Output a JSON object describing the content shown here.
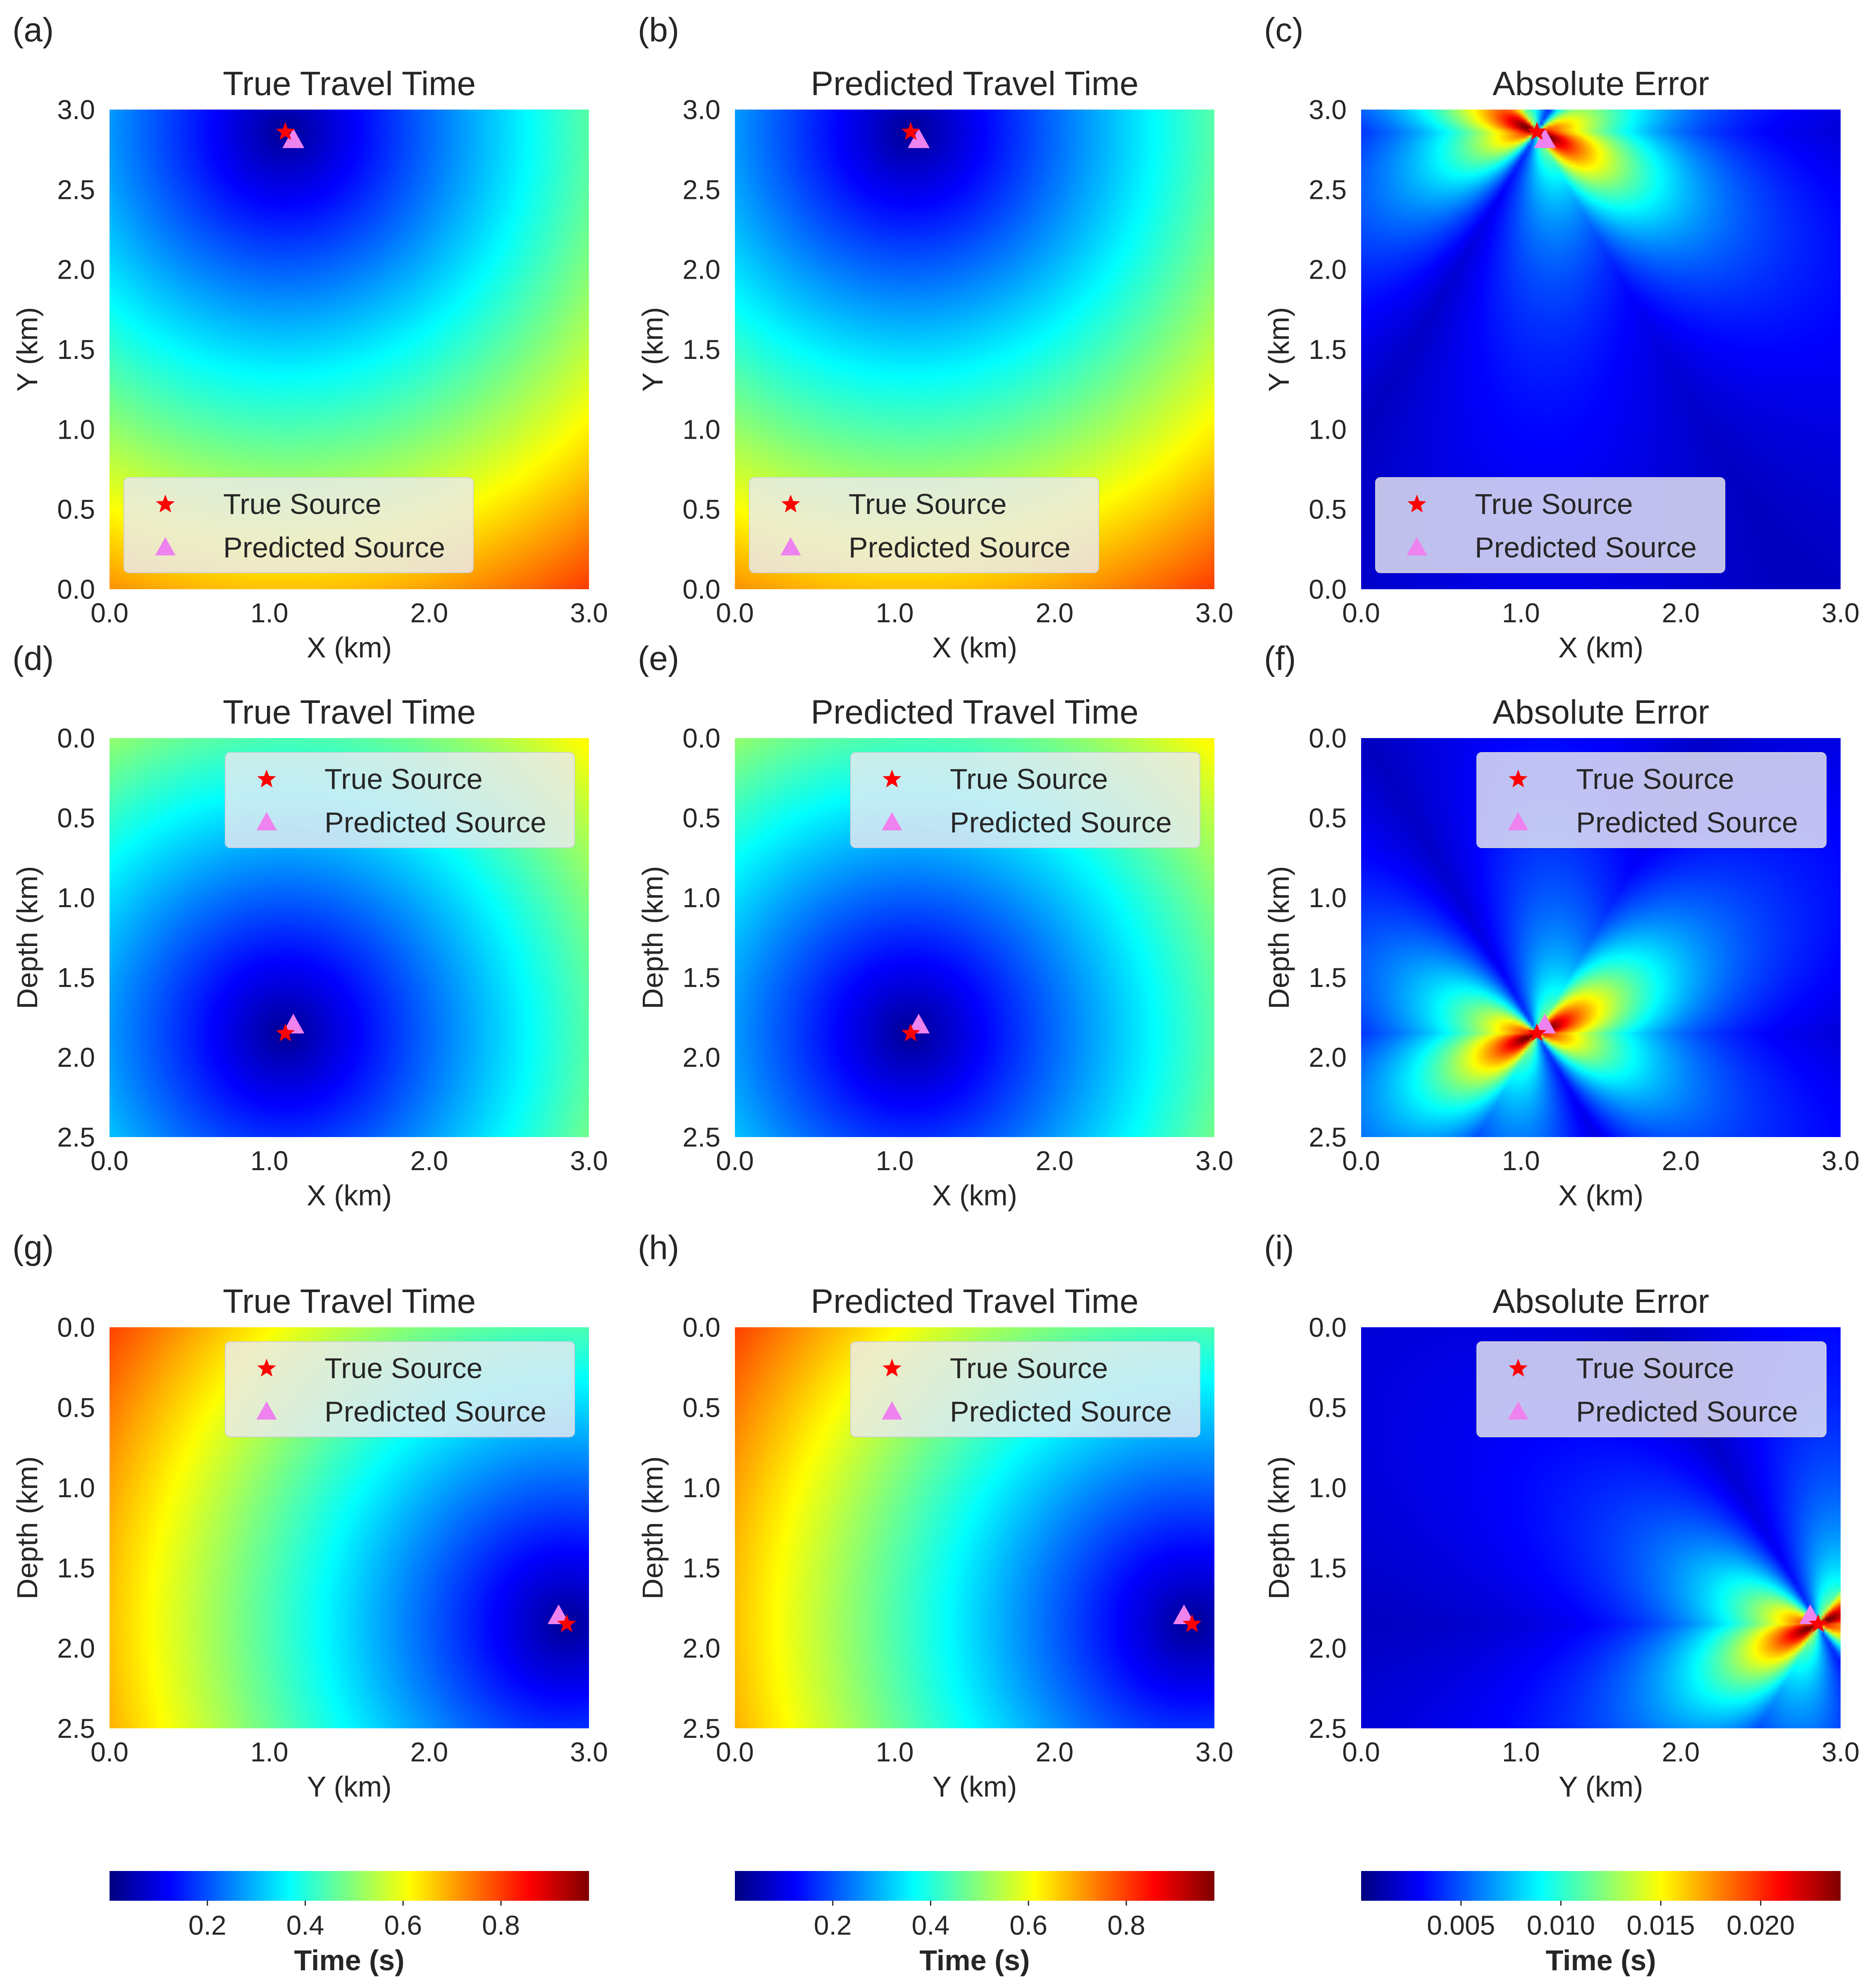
{
  "colormap": [
    "#00007f",
    "#0000ff",
    "#007fff",
    "#00ffff",
    "#7fff7f",
    "#ffff00",
    "#ff7f00",
    "#ff0000",
    "#7f0000"
  ],
  "markers": {
    "true_source_color": "#ff0000",
    "predicted_source_color": "#ee82ee",
    "true_source_icon": "star-icon",
    "predicted_source_icon": "triangle-icon"
  },
  "chart_data": [
    {
      "type": "heatmap",
      "panel": "(a)",
      "title": "True Travel Time",
      "xlabel": "X (km)",
      "ylabel": "Y (km)",
      "xlim": [
        0,
        3
      ],
      "ylim": [
        0,
        3
      ],
      "y_inverted": false,
      "xticks": [
        "0.0",
        "1.0",
        "2.0",
        "3.0"
      ],
      "yticks": [
        "0.0",
        "0.5",
        "1.0",
        "1.5",
        "2.0",
        "2.5",
        "3.0"
      ],
      "field": "travel_time",
      "true_source": [
        1.1,
        2.86
      ],
      "predicted_source": [
        1.15,
        2.81
      ],
      "legend": [
        "True Source",
        "Predicted Source"
      ],
      "legend_position": "lower-left"
    },
    {
      "type": "heatmap",
      "panel": "(b)",
      "title": "Predicted Travel Time",
      "xlabel": "X (km)",
      "ylabel": "Y (km)",
      "xlim": [
        0,
        3
      ],
      "ylim": [
        0,
        3
      ],
      "y_inverted": false,
      "xticks": [
        "0.0",
        "1.0",
        "2.0",
        "3.0"
      ],
      "yticks": [
        "0.0",
        "0.5",
        "1.0",
        "1.5",
        "2.0",
        "2.5",
        "3.0"
      ],
      "field": "travel_time",
      "true_source": [
        1.1,
        2.86
      ],
      "predicted_source": [
        1.15,
        2.81
      ],
      "legend": [
        "True Source",
        "Predicted Source"
      ],
      "legend_position": "lower-left"
    },
    {
      "type": "heatmap",
      "panel": "(c)",
      "title": "Absolute Error",
      "xlabel": "X (km)",
      "ylabel": "Y (km)",
      "xlim": [
        0,
        3
      ],
      "ylim": [
        0,
        3
      ],
      "y_inverted": false,
      "xticks": [
        "0.0",
        "1.0",
        "2.0",
        "3.0"
      ],
      "yticks": [
        "0.0",
        "0.5",
        "1.0",
        "1.5",
        "2.0",
        "2.5",
        "3.0"
      ],
      "field": "abs_error",
      "true_source": [
        1.1,
        2.86
      ],
      "predicted_source": [
        1.15,
        2.81
      ],
      "legend": [
        "True Source",
        "Predicted Source"
      ],
      "legend_position": "lower-left"
    },
    {
      "type": "heatmap",
      "panel": "(d)",
      "title": "True Travel Time",
      "xlabel": "X (km)",
      "ylabel": "Depth (km)",
      "xlim": [
        0,
        3
      ],
      "ylim": [
        0,
        2.5
      ],
      "y_inverted": true,
      "xticks": [
        "0.0",
        "1.0",
        "2.0",
        "3.0"
      ],
      "yticks": [
        "0.0",
        "0.5",
        "1.0",
        "1.5",
        "2.0",
        "2.5"
      ],
      "field": "travel_time",
      "true_source": [
        1.1,
        1.85
      ],
      "predicted_source": [
        1.15,
        1.8
      ],
      "legend": [
        "True Source",
        "Predicted Source"
      ],
      "legend_position": "upper-right"
    },
    {
      "type": "heatmap",
      "panel": "(e)",
      "title": "Predicted Travel Time",
      "xlabel": "X (km)",
      "ylabel": "Depth (km)",
      "xlim": [
        0,
        3
      ],
      "ylim": [
        0,
        2.5
      ],
      "y_inverted": true,
      "xticks": [
        "0.0",
        "1.0",
        "2.0",
        "3.0"
      ],
      "yticks": [
        "0.0",
        "0.5",
        "1.0",
        "1.5",
        "2.0",
        "2.5"
      ],
      "field": "travel_time",
      "true_source": [
        1.1,
        1.85
      ],
      "predicted_source": [
        1.15,
        1.8
      ],
      "legend": [
        "True Source",
        "Predicted Source"
      ],
      "legend_position": "upper-right"
    },
    {
      "type": "heatmap",
      "panel": "(f)",
      "title": "Absolute Error",
      "xlabel": "X (km)",
      "ylabel": "Depth (km)",
      "xlim": [
        0,
        3
      ],
      "ylim": [
        0,
        2.5
      ],
      "y_inverted": true,
      "xticks": [
        "0.0",
        "1.0",
        "2.0",
        "3.0"
      ],
      "yticks": [
        "0.0",
        "0.5",
        "1.0",
        "1.5",
        "2.0",
        "2.5"
      ],
      "field": "abs_error",
      "true_source": [
        1.1,
        1.85
      ],
      "predicted_source": [
        1.15,
        1.8
      ],
      "legend": [
        "True Source",
        "Predicted Source"
      ],
      "legend_position": "upper-right"
    },
    {
      "type": "heatmap",
      "panel": "(g)",
      "title": "True Travel Time",
      "xlabel": "Y (km)",
      "ylabel": "Depth (km)",
      "xlim": [
        0,
        3
      ],
      "ylim": [
        0,
        2.5
      ],
      "y_inverted": true,
      "xticks": [
        "0.0",
        "1.0",
        "2.0",
        "3.0"
      ],
      "yticks": [
        "0.0",
        "0.5",
        "1.0",
        "1.5",
        "2.0",
        "2.5"
      ],
      "field": "travel_time",
      "true_source": [
        2.86,
        1.85
      ],
      "predicted_source": [
        2.81,
        1.8
      ],
      "legend": [
        "True Source",
        "Predicted Source"
      ],
      "legend_position": "upper-right"
    },
    {
      "type": "heatmap",
      "panel": "(h)",
      "title": "Predicted Travel Time",
      "xlabel": "Y (km)",
      "ylabel": "Depth (km)",
      "xlim": [
        0,
        3
      ],
      "ylim": [
        0,
        2.5
      ],
      "y_inverted": true,
      "xticks": [
        "0.0",
        "1.0",
        "2.0",
        "3.0"
      ],
      "yticks": [
        "0.0",
        "0.5",
        "1.0",
        "1.5",
        "2.0",
        "2.5"
      ],
      "field": "travel_time",
      "true_source": [
        2.86,
        1.85
      ],
      "predicted_source": [
        2.81,
        1.8
      ],
      "legend": [
        "True Source",
        "Predicted Source"
      ],
      "legend_position": "upper-right"
    },
    {
      "type": "heatmap",
      "panel": "(i)",
      "title": "Absolute Error",
      "xlabel": "Y (km)",
      "ylabel": "Depth (km)",
      "xlim": [
        0,
        3
      ],
      "ylim": [
        0,
        2.5
      ],
      "y_inverted": true,
      "xticks": [
        "0.0",
        "1.0",
        "2.0",
        "3.0"
      ],
      "yticks": [
        "0.0",
        "0.5",
        "1.0",
        "1.5",
        "2.0",
        "2.5"
      ],
      "field": "abs_error",
      "true_source": [
        2.86,
        1.85
      ],
      "predicted_source": [
        2.81,
        1.8
      ],
      "legend": [
        "True Source",
        "Predicted Source"
      ],
      "legend_position": "upper-right"
    }
  ],
  "colorbars": [
    {
      "label": "Time (s)",
      "range": [
        0.0,
        0.98
      ],
      "ticks": [
        "0.2",
        "0.4",
        "0.6",
        "0.8"
      ],
      "tick_values": [
        0.2,
        0.4,
        0.6,
        0.8
      ]
    },
    {
      "label": "Time  (s)",
      "range": [
        0.0,
        0.98
      ],
      "ticks": [
        "0.2",
        "0.4",
        "0.6",
        "0.8"
      ],
      "tick_values": [
        0.2,
        0.4,
        0.6,
        0.8
      ]
    },
    {
      "label": "Time (s)",
      "range": [
        0.0,
        0.024
      ],
      "ticks": [
        "0.005",
        "0.010",
        "0.015",
        "0.020"
      ],
      "tick_values": [
        0.005,
        0.01,
        0.015,
        0.02
      ]
    }
  ]
}
